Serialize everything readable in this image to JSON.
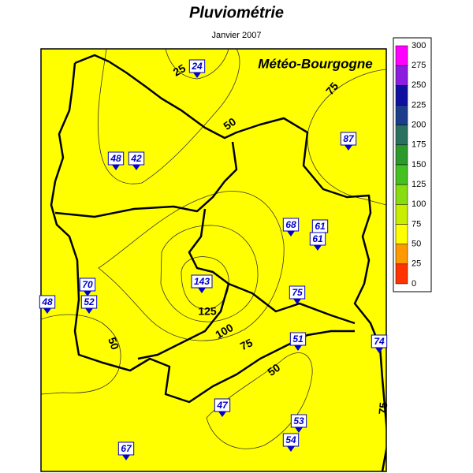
{
  "header": {
    "title": "Pluviométrie",
    "subtitle": "Janvier 2007"
  },
  "map": {
    "brand": "Météo-Bourgogne",
    "contour_labels": [
      "25",
      "50",
      "75",
      "50",
      "125",
      "100",
      "75",
      "50",
      "75"
    ],
    "stations": [
      24,
      48,
      42,
      87,
      68,
      61,
      61,
      143,
      70,
      52,
      48,
      75,
      51,
      74,
      47,
      53,
      54,
      67
    ]
  },
  "legend": {
    "ticks": [
      300,
      275,
      250,
      225,
      200,
      175,
      150,
      125,
      100,
      75,
      50,
      25,
      0
    ],
    "colors": [
      "#ff00ff",
      "#8c1ce0",
      "#1010a0",
      "#1c3c8c",
      "#2a7060",
      "#2a9a2a",
      "#44c020",
      "#88dd10",
      "#c8ee00",
      "#ffff00",
      "#ff9900",
      "#ff3300"
    ]
  }
}
